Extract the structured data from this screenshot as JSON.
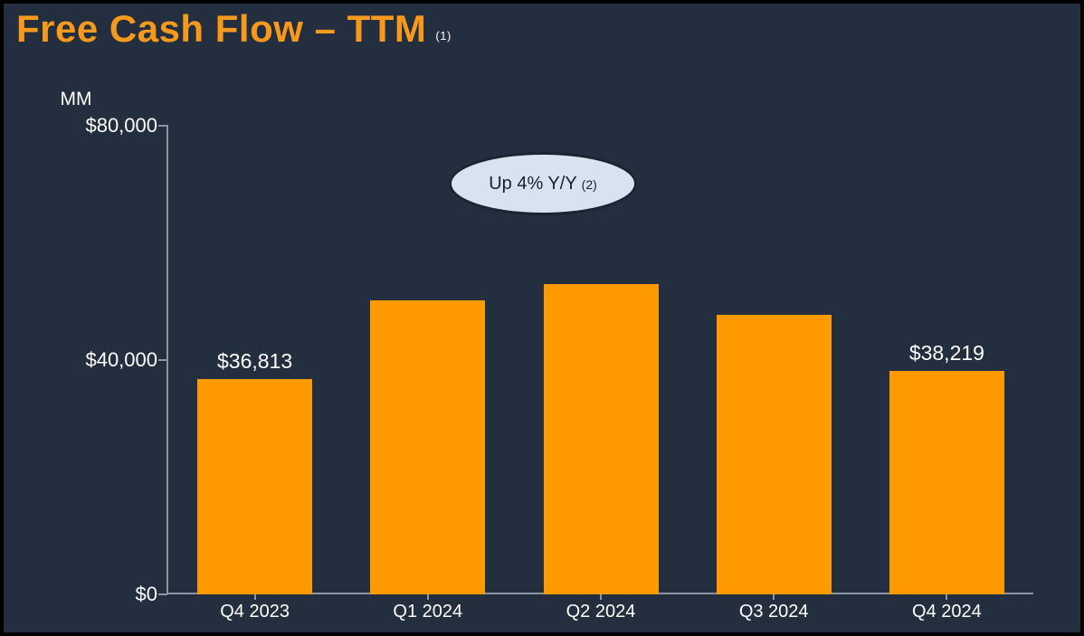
{
  "title": {
    "text": "Free Cash Flow – TTM",
    "superscript": "(1)"
  },
  "annotation": {
    "text": "Up 4% Y/Y",
    "superscript": "(2)"
  },
  "colors": {
    "background": "#232F3E",
    "frame_border": "#000000",
    "bar": "#FF9900",
    "title": "#F7991D",
    "text": "#FFFFFF",
    "axis": "#8C96A3",
    "annotation_fill": "#D9E3EF",
    "annotation_border": "#1A2433",
    "annotation_text": "#17202B"
  },
  "chart_data": {
    "type": "bar",
    "title": "Free Cash Flow – TTM (1)",
    "categories": [
      "Q4 2023",
      "Q1 2024",
      "Q2 2024",
      "Q3 2024",
      "Q4 2024"
    ],
    "values": [
      36813,
      50149,
      52973,
      47747,
      38219
    ],
    "bar_labels": [
      "$36,813",
      null,
      null,
      null,
      "$38,219"
    ],
    "ylabel": "MM",
    "ylim": [
      0,
      80000
    ],
    "yticks": [
      {
        "value": 0,
        "label": "$0"
      },
      {
        "value": 40000,
        "label": "$40,000"
      },
      {
        "value": 80000,
        "label": "$80,000"
      }
    ],
    "grid": false,
    "legend": false,
    "annotation": "Up 4% Y/Y (2)",
    "bar_color": "#FF9900"
  }
}
